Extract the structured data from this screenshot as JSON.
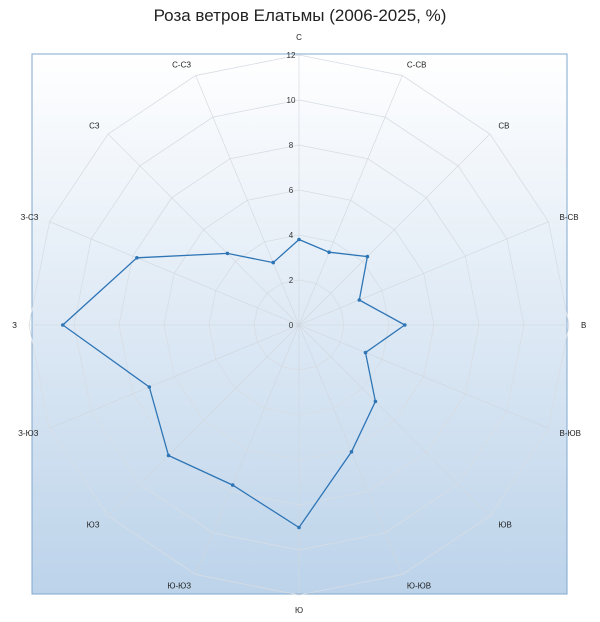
{
  "chart_data": {
    "type": "radar",
    "title": "Роза ветров Елатьмы (2006-2025, %)",
    "categories": [
      "С",
      "С-СВ",
      "СВ",
      "В-СВ",
      "В",
      "В-ЮВ",
      "ЮВ",
      "Ю-ЮВ",
      "Ю",
      "Ю-ЮЗ",
      "ЮЗ",
      "З-ЮЗ",
      "З",
      "З-СЗ",
      "СЗ",
      "С-СЗ"
    ],
    "series": [
      {
        "values": [
          3.8,
          3.5,
          4.3,
          2.9,
          4.7,
          3.2,
          4.8,
          6.1,
          9.0,
          7.7,
          8.2,
          7.2,
          10.5,
          7.8,
          4.5,
          3.0
        ],
        "color": "#2e75b6"
      }
    ],
    "rlim": [
      0,
      12
    ],
    "ticks": [
      "0",
      "2",
      "4",
      "6",
      "8",
      "10",
      "12"
    ],
    "grid": true,
    "background": {
      "top": "#ffffff",
      "bottom": "#bcd3ea",
      "border": "#7fa8cf"
    }
  }
}
